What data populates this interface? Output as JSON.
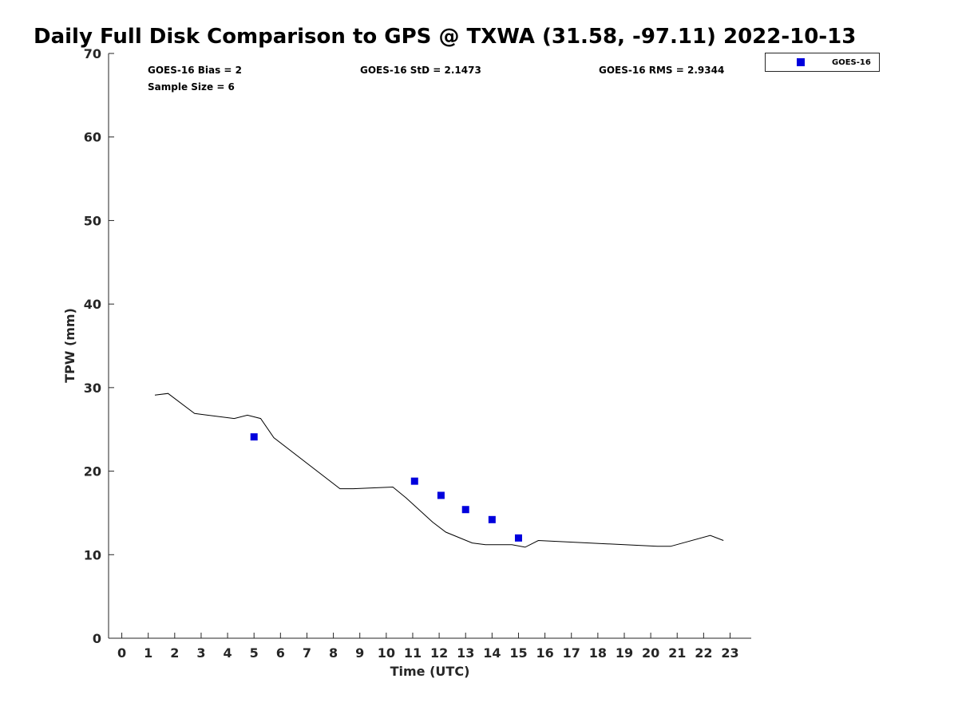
{
  "chart_data": {
    "type": "scatter",
    "title": "Daily Full Disk Comparison to GPS @ TXWA (31.58, -97.11) 2022-10-13",
    "xlabel": "Time (UTC)",
    "ylabel": "TPW (mm)",
    "xlim": [
      -0.5,
      23.8
    ],
    "ylim": [
      0,
      70
    ],
    "xticks": [
      "0",
      "1",
      "2",
      "3",
      "4",
      "5",
      "6",
      "7",
      "8",
      "9",
      "10",
      "11",
      "12",
      "13",
      "14",
      "15",
      "16",
      "17",
      "18",
      "19",
      "20",
      "21",
      "22",
      "23"
    ],
    "yticks": [
      "0",
      "10",
      "20",
      "30",
      "40",
      "50",
      "60",
      "70"
    ],
    "grid": false,
    "legend_position": "top-right-outside",
    "stats": {
      "bias": "GOES-16 Bias = 2",
      "std": "GOES-16 StD = 2.1473",
      "rms": "GOES-16 RMS = 2.9344",
      "sample": "Sample Size = 6"
    },
    "series": [
      {
        "name": "GOES-16",
        "kind": "scatter",
        "marker": "square",
        "color": "#0000dd",
        "x": [
          5.0,
          11.07,
          12.07,
          13.0,
          14.0,
          15.0
        ],
        "y": [
          24.1,
          18.8,
          17.1,
          15.4,
          14.2,
          12.0
        ]
      },
      {
        "kind": "line",
        "color": "#000000",
        "x": [
          1.25,
          1.75,
          2.75,
          4.25,
          4.75,
          5.25,
          5.75,
          8.25,
          8.75,
          10.25,
          10.75,
          11.75,
          12.25,
          13.25,
          13.75,
          14.75,
          15.25,
          15.75,
          20.25,
          20.75,
          22.25,
          22.75
        ],
        "y": [
          29.1,
          29.3,
          26.9,
          26.3,
          26.7,
          26.3,
          24.0,
          17.9,
          17.9,
          18.1,
          16.8,
          13.9,
          12.7,
          11.4,
          11.2,
          11.2,
          10.9,
          11.7,
          11.0,
          11.0,
          12.3,
          11.7
        ]
      }
    ]
  }
}
